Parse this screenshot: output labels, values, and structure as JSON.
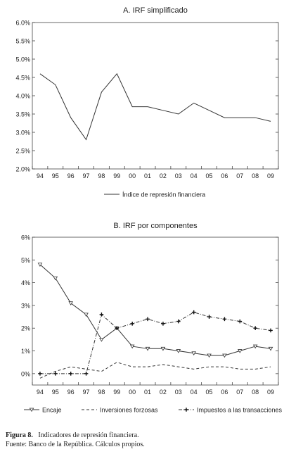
{
  "chart_data": [
    {
      "type": "line",
      "title": "A. IRF simplificado",
      "categories": [
        "94",
        "95",
        "96",
        "97",
        "98",
        "99",
        "00",
        "01",
        "02",
        "03",
        "04",
        "05",
        "06",
        "07",
        "08",
        "09"
      ],
      "ylim": [
        2.0,
        6.0
      ],
      "yticks": [
        "2.0%",
        "2.5%",
        "3.0%",
        "3.5%",
        "4.0%",
        "4.5%",
        "5.0%",
        "5.5%",
        "6.0%"
      ],
      "grid": false,
      "legend_position": "bottom",
      "series": [
        {
          "name": "Índice de represión financiera",
          "style": "solid",
          "values": [
            4.6,
            4.3,
            3.4,
            2.8,
            4.1,
            4.6,
            3.7,
            3.7,
            3.6,
            3.5,
            3.8,
            3.6,
            3.4,
            3.4,
            3.4,
            3.3
          ]
        }
      ]
    },
    {
      "type": "line",
      "title": "B. IRF por componentes",
      "categories": [
        "94",
        "95",
        "96",
        "97",
        "98",
        "99",
        "00",
        "01",
        "02",
        "03",
        "04",
        "05",
        "06",
        "07",
        "08",
        "09"
      ],
      "ylim": [
        -0.5,
        6.0
      ],
      "yticks": [
        "0%",
        "1%",
        "2%",
        "3%",
        "4%",
        "5%",
        "6%"
      ],
      "grid": false,
      "legend_position": "bottom",
      "series": [
        {
          "name": "Encaje",
          "style": "solid-triangle",
          "values": [
            4.8,
            4.2,
            3.1,
            2.6,
            1.5,
            2.0,
            1.2,
            1.1,
            1.1,
            1.0,
            0.9,
            0.8,
            0.8,
            1.0,
            1.2,
            1.1
          ]
        },
        {
          "name": "Inversiones forzosas",
          "style": "dashed",
          "values": [
            -0.2,
            0.1,
            0.3,
            0.2,
            0.1,
            0.5,
            0.3,
            0.3,
            0.4,
            0.3,
            0.2,
            0.3,
            0.3,
            0.2,
            0.2,
            0.3
          ]
        },
        {
          "name": "Impuestos a las transacciones",
          "style": "dashdot-plus",
          "values": [
            0.0,
            0.0,
            0.0,
            0.0,
            2.6,
            2.0,
            2.2,
            2.4,
            2.2,
            2.3,
            2.7,
            2.5,
            2.4,
            2.3,
            2.0,
            1.9
          ]
        }
      ]
    }
  ],
  "caption": {
    "figure_label": "Figura 8.",
    "figure_title": "Indicadores de represión financiera.",
    "source": "Fuente: Banco de la República. Cálculos propios."
  }
}
